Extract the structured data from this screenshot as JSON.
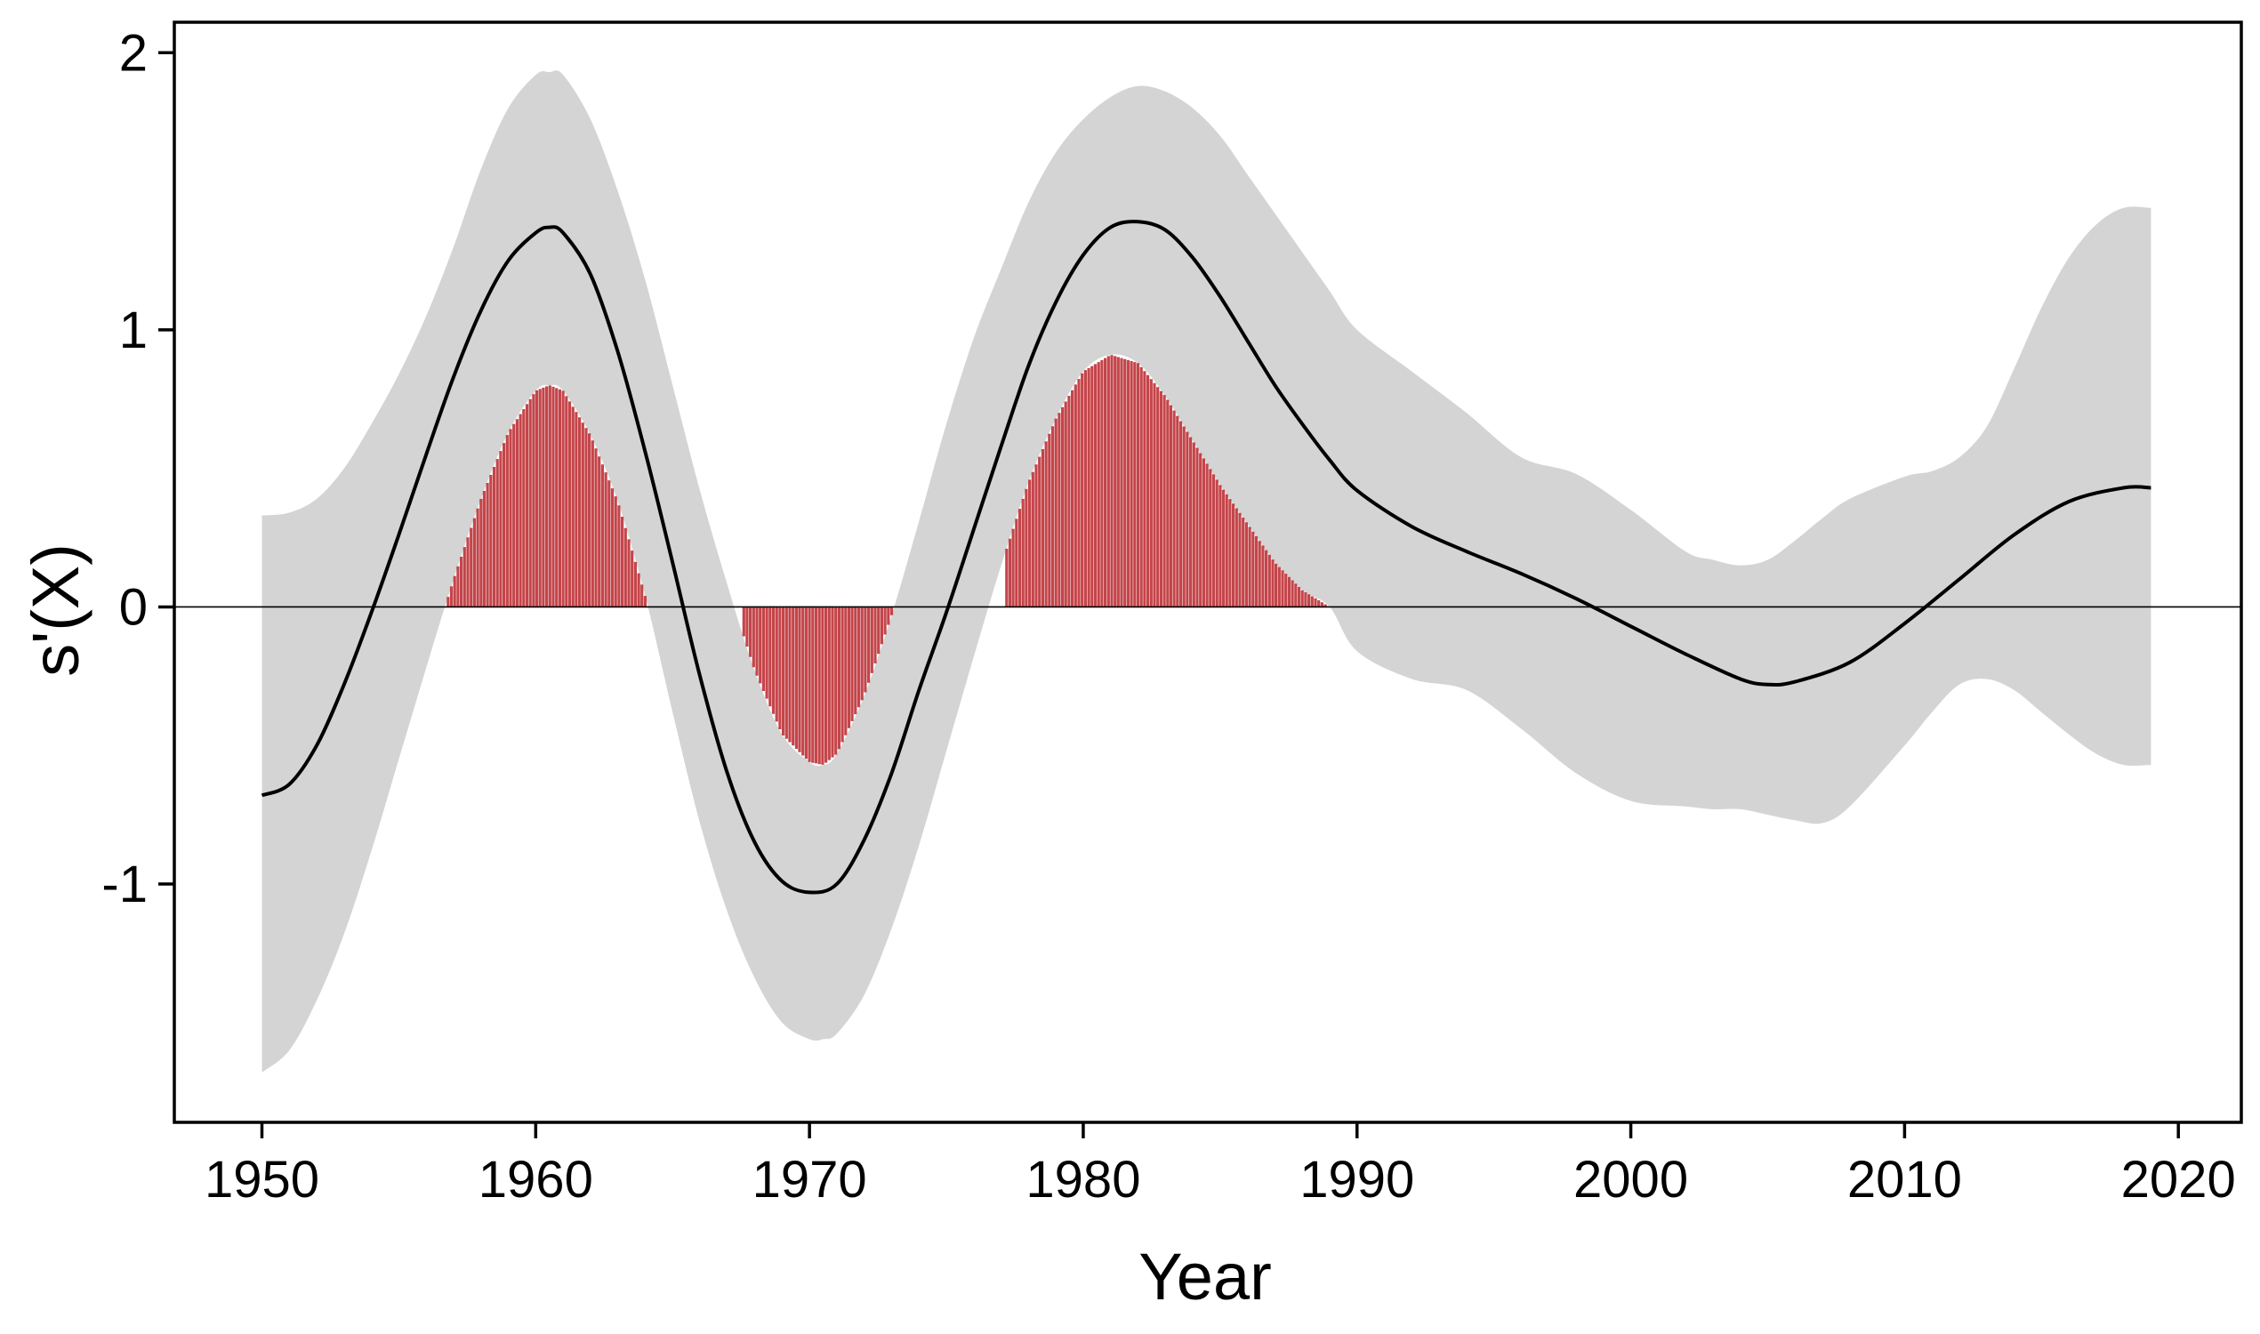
{
  "chart_data": {
    "type": "line",
    "title": "",
    "xlabel": "Year",
    "ylabel": "s'(X)",
    "xlim": [
      1946.8,
      2022.3
    ],
    "ylim": [
      -1.86,
      2.11
    ],
    "x_ticks": [
      1950,
      1960,
      1970,
      1980,
      1990,
      2000,
      2010,
      2020
    ],
    "x_tick_labels": [
      "1950",
      "1960",
      "1970",
      "1980",
      "1990",
      "2000",
      "2010",
      "2020"
    ],
    "y_ticks": [
      -1,
      0,
      1,
      2
    ],
    "y_tick_labels": [
      "-1",
      "0",
      "1",
      "2"
    ],
    "grid": false,
    "legend": "none",
    "reference_line_y": 0,
    "colors": {
      "band": "#d4d4d4",
      "line": "#000000",
      "significant": "#c4454a",
      "axis": "#000000"
    },
    "series": [
      {
        "role": "estimate",
        "x": [
          1950,
          1951,
          1952,
          1953,
          1954,
          1955,
          1956,
          1957,
          1958,
          1959,
          1960,
          1960.5,
          1961,
          1962,
          1963,
          1964,
          1965,
          1966,
          1967,
          1968,
          1969,
          1970,
          1971,
          1972,
          1973,
          1974,
          1975,
          1976,
          1977,
          1978,
          1979,
          1980,
          1981,
          1982,
          1983,
          1984,
          1985,
          1986,
          1987,
          1988,
          1989,
          1990,
          1992,
          1994,
          1996,
          1998,
          2000,
          2002,
          2004,
          2005,
          2006,
          2008,
          2010,
          2012,
          2014,
          2016,
          2018,
          2019
        ],
        "y": [
          -0.68,
          -0.64,
          -0.5,
          -0.28,
          -0.02,
          0.26,
          0.55,
          0.83,
          1.07,
          1.25,
          1.35,
          1.37,
          1.35,
          1.2,
          0.92,
          0.56,
          0.16,
          -0.25,
          -0.6,
          -0.85,
          -0.99,
          -1.03,
          -1.0,
          -0.84,
          -0.6,
          -0.3,
          -0.02,
          0.28,
          0.58,
          0.87,
          1.1,
          1.27,
          1.37,
          1.39,
          1.36,
          1.26,
          1.12,
          0.96,
          0.8,
          0.66,
          0.53,
          0.42,
          0.29,
          0.2,
          0.12,
          0.03,
          -0.07,
          -0.17,
          -0.26,
          -0.28,
          -0.27,
          -0.2,
          -0.06,
          0.1,
          0.26,
          0.38,
          0.43,
          0.43
        ]
      },
      {
        "role": "interval",
        "x": [
          1950,
          1951,
          1952,
          1953,
          1954,
          1955,
          1956,
          1957,
          1958,
          1959,
          1960,
          1960.5,
          1961,
          1962,
          1963,
          1964,
          1965,
          1966,
          1967,
          1968,
          1969,
          1970,
          1970.5,
          1971,
          1972,
          1973,
          1974,
          1975,
          1976,
          1977,
          1978,
          1979,
          1980,
          1981,
          1982,
          1983,
          1984,
          1985,
          1986,
          1987,
          1988,
          1989,
          1990,
          1992,
          1994,
          1996,
          1998,
          2000,
          2002,
          2003,
          2004,
          2005,
          2006,
          2007,
          2008,
          2010,
          2011,
          2012,
          2013,
          2014,
          2015,
          2016,
          2017,
          2018,
          2019
        ],
        "lower": [
          -1.68,
          -1.6,
          -1.42,
          -1.18,
          -0.88,
          -0.55,
          -0.22,
          0.1,
          0.39,
          0.63,
          0.78,
          0.8,
          0.78,
          0.62,
          0.38,
          0.04,
          -0.38,
          -0.78,
          -1.1,
          -1.34,
          -1.5,
          -1.56,
          -1.56,
          -1.54,
          -1.4,
          -1.16,
          -0.86,
          -0.52,
          -0.18,
          0.15,
          0.45,
          0.68,
          0.85,
          0.91,
          0.88,
          0.76,
          0.6,
          0.44,
          0.3,
          0.16,
          0.06,
          0.0,
          -0.16,
          -0.26,
          -0.3,
          -0.44,
          -0.6,
          -0.7,
          -0.72,
          -0.73,
          -0.73,
          -0.75,
          -0.77,
          -0.78,
          -0.72,
          -0.5,
          -0.38,
          -0.28,
          -0.26,
          -0.3,
          -0.38,
          -0.46,
          -0.53,
          -0.57,
          -0.57
        ],
        "upper": [
          0.33,
          0.34,
          0.39,
          0.5,
          0.66,
          0.84,
          1.05,
          1.3,
          1.58,
          1.8,
          1.92,
          1.93,
          1.92,
          1.76,
          1.5,
          1.18,
          0.8,
          0.42,
          0.08,
          -0.23,
          -0.46,
          -0.56,
          -0.57,
          -0.53,
          -0.32,
          -0.03,
          0.31,
          0.66,
          0.97,
          1.22,
          1.46,
          1.64,
          1.76,
          1.84,
          1.88,
          1.86,
          1.8,
          1.7,
          1.56,
          1.42,
          1.28,
          1.14,
          1.0,
          0.85,
          0.7,
          0.54,
          0.48,
          0.35,
          0.2,
          0.17,
          0.15,
          0.17,
          0.24,
          0.32,
          0.39,
          0.47,
          0.49,
          0.54,
          0.65,
          0.86,
          1.08,
          1.26,
          1.38,
          1.44,
          1.44
        ]
      }
    ],
    "significant_regions": [
      {
        "x_start": 1956.2,
        "x_end": 1964.8
      },
      {
        "x_start": 1967.6,
        "x_end": 1974.0
      },
      {
        "x_start": 1977.2,
        "x_end": 1990.0
      }
    ]
  }
}
